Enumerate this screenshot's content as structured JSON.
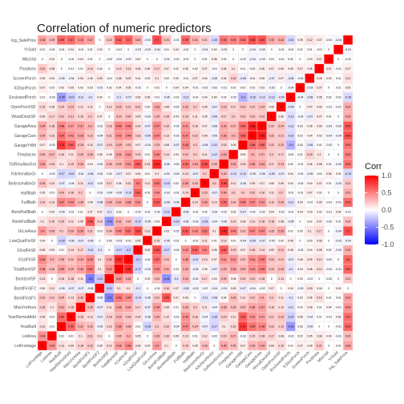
{
  "chart_data": {
    "type": "heatmap",
    "title": "Correlation of numeric predictors",
    "variables": [
      "log_SalePrice",
      "YrSold",
      "MiscVal",
      "PoolArea",
      "ScreenPorch",
      "X3SsnPorch",
      "EnclosedPorch",
      "OpenPorchSF",
      "WoodDeckSF",
      "GarageArea",
      "GarageCars",
      "GarageYrBlt",
      "Fireplaces",
      "TotRmsAbvGrd",
      "KitchenAbvGr",
      "BedroomAbvGr",
      "HalfBath",
      "FullBath",
      "BsmtHalfBath",
      "BsmtFullBath",
      "GrLivArea",
      "LowQualFinSF",
      "X2ndFlrSF",
      "X1stFlrSF",
      "TotalBsmtSF",
      "BsmtUnfSF",
      "BsmtFinSF2",
      "BsmtFinSF1",
      "MasVnrArea",
      "YearRemodAdd",
      "YearBuilt",
      "LotArea",
      "LotFrontage"
    ],
    "x_labels": [
      "LotFrontage",
      "LotArea",
      "YearBuilt",
      "YearRemodAdd",
      "MasVnrArea",
      "BsmtFinSF1",
      "BsmtFinSF2",
      "BsmtUnfSF",
      "TotalBsmtSF",
      "X1stFlrSF",
      "X2ndFlrSF",
      "LowQualFinSF",
      "GrLivArea",
      "BsmtFullBath",
      "BsmtHalfBath",
      "FullBath",
      "HalfBath",
      "BedroomAbvGr",
      "KitchenAbvGr",
      "TotRmsAbvGrd",
      "Fireplaces",
      "GarageYrBlt",
      "GarageCars",
      "GarageArea",
      "WoodDeckSF",
      "OpenPorchSF",
      "EnclosedPorch",
      "X3SsnPorch",
      "ScreenPorch",
      "PoolArea",
      "MiscVal",
      "YrSold",
      "log_SalePrice"
    ],
    "values_by_row": [
      [
        0.36,
        0.26,
        0.59,
        0.57,
        0.43,
        0.37,
        0.0,
        0.22,
        0.61,
        0.6,
        0.32,
        -0.04,
        0.7,
        0.24,
        -0.01,
        0.59,
        0.31,
        0.21,
        -0.15,
        0.53,
        0.49,
        0.54,
        0.68,
        0.65,
        0.33,
        0.32,
        -0.15,
        0.05,
        0.12,
        0.07,
        -0.02,
        -0.04,
        1
      ],
      [
        0.01,
        -0.01,
        -0.01,
        0.04,
        -0.01,
        0.01,
        0.03,
        0.0,
        -0.01,
        0.0,
        -0.03,
        -0.03,
        -0.04,
        0.01,
        0.04,
        -0.01,
        0.0,
        -0.04,
        0.02,
        -0.03,
        0.0,
        0.0,
        -0.04,
        -0.03,
        0.0,
        -0.01,
        -0.01,
        0.01,
        0.01,
        -0.01,
        0.0,
        1,
        -0.04
      ],
      [
        0.0,
        0.04,
        0.0,
        -0.01,
        0.04,
        0.01,
        0.0,
        -0.02,
        -0.02,
        -0.02,
        0.02,
        0.0,
        0.0,
        -0.02,
        -0.01,
        -0.01,
        0.0,
        0.01,
        0.06,
        0.02,
        0.0,
        -0.02,
        -0.04,
        -0.03,
        0.01,
        -0.01,
        0.02,
        0.0,
        0.03,
        0.07,
        1,
        0.0,
        -0.02
      ],
      [
        0.21,
        0.08,
        0.0,
        0.01,
        0.01,
        0.14,
        0.04,
        0.0,
        0.13,
        0.13,
        0.08,
        0.06,
        0.17,
        0.07,
        0.02,
        0.05,
        0.02,
        0.07,
        -0.01,
        0.08,
        0.1,
        0.01,
        0.03,
        0.06,
        0.07,
        0.06,
        0.05,
        0.07,
        0.05,
        1,
        0.07,
        -0.01,
        0.07
      ],
      [
        0.05,
        0.05,
        -0.05,
        -0.04,
        0.06,
        0.06,
        0.09,
        -0.01,
        0.08,
        0.09,
        0.04,
        0.03,
        0.1,
        0.02,
        0.03,
        -0.01,
        0.07,
        0.04,
        -0.05,
        0.06,
        0.18,
        -0.08,
        0.04,
        0.05,
        -0.07,
        0.07,
        -0.08,
        -0.03,
        1,
        0.05,
        0.03,
        0.01,
        0.12
      ],
      [
        0.07,
        0.02,
        0.03,
        0.05,
        0.02,
        0.03,
        -0.03,
        0.02,
        0.04,
        0.06,
        -0.02,
        0.0,
        0.02,
        0.0,
        0.04,
        0.04,
        -0.01,
        -0.02,
        -0.02,
        -0.01,
        0.01,
        0.02,
        0.02,
        0.03,
        -0.03,
        0.0,
        -0.04,
        1,
        -0.03,
        0.07,
        0.0,
        0.01,
        0.05
      ],
      [
        0.01,
        -0.02,
        -0.39,
        -0.19,
        -0.11,
        -0.1,
        0.04,
        0.0,
        -0.1,
        -0.07,
        0.06,
        0.06,
        0.01,
        -0.05,
        -0.01,
        -0.12,
        -0.01,
        0.04,
        0.04,
        0.02,
        -0.02,
        -0.3,
        -0.15,
        -0.12,
        -0.13,
        -0.09,
        1,
        -0.04,
        -0.08,
        0.05,
        0.02,
        -0.01,
        -0.15
      ],
      [
        0.15,
        0.08,
        0.19,
        0.23,
        0.12,
        0.11,
        0.0,
        0.13,
        0.25,
        0.21,
        0.21,
        0.02,
        0.33,
        0.08,
        -0.02,
        0.26,
        0.2,
        0.09,
        -0.07,
        0.23,
        0.17,
        0.23,
        0.21,
        0.24,
        0.06,
        1,
        -0.09,
        0.0,
        0.07,
        0.06,
        -0.01,
        -0.01,
        0.32
      ],
      [
        0.09,
        0.17,
        0.22,
        0.21,
        0.16,
        0.2,
        0.07,
        0.0,
        0.23,
        0.24,
        0.09,
        -0.03,
        0.25,
        0.18,
        0.04,
        0.19,
        0.11,
        0.05,
        -0.09,
        0.17,
        0.2,
        0.22,
        0.23,
        0.22,
        1,
        0.06,
        -0.13,
        -0.03,
        -0.07,
        0.07,
        0.01,
        0.0,
        0.33
      ],
      [
        0.34,
        0.18,
        0.48,
        0.37,
        0.37,
        0.3,
        -0.02,
        0.18,
        0.49,
        0.49,
        0.14,
        -0.07,
        0.47,
        0.18,
        -0.02,
        0.41,
        0.16,
        0.07,
        -0.06,
        0.34,
        0.27,
        0.56,
        0.88,
        1,
        0.22,
        0.24,
        -0.12,
        0.03,
        0.05,
        0.06,
        -0.03,
        -0.03,
        0.65
      ],
      [
        0.29,
        0.15,
        0.54,
        0.42,
        0.36,
        0.22,
        -0.04,
        0.21,
        0.43,
        0.44,
        0.18,
        -0.09,
        0.47,
        0.13,
        -0.02,
        0.47,
        0.22,
        0.09,
        -0.05,
        0.36,
        0.3,
        0.58,
        1,
        0.88,
        0.23,
        0.21,
        -0.15,
        0.02,
        0.04,
        0.03,
        -0.04,
        -0.04,
        0.68
      ],
      [
        0.07,
        -0.02,
        0.78,
        0.62,
        0.25,
        0.12,
        -0.07,
        0.19,
        0.29,
        0.23,
        0.07,
        -0.04,
        0.23,
        0.08,
        -0.07,
        0.48,
        0.2,
        -0.06,
        -0.12,
        0.15,
        0.05,
        1,
        0.58,
        0.56,
        0.22,
        0.23,
        -0.3,
        0.02,
        -0.08,
        0.01,
        -0.02,
        0.0,
        0.54
      ],
      [
        0.25,
        0.27,
        0.15,
        0.11,
        0.25,
        0.26,
        0.05,
        0.05,
        0.34,
        0.41,
        0.19,
        0.01,
        0.46,
        0.14,
        0.03,
        0.24,
        0.2,
        0.11,
        -0.12,
        0.33,
        1,
        0.05,
        0.3,
        0.27,
        0.2,
        0.17,
        -0.02,
        0.01,
        0.18,
        0.1,
        0.0,
        0.0,
        0.49
      ],
      [
        0.35,
        0.19,
        0.1,
        0.19,
        0.28,
        0.04,
        -0.04,
        0.25,
        0.29,
        0.41,
        0.62,
        0.13,
        0.83,
        -0.05,
        -0.02,
        0.55,
        0.34,
        0.68,
        0.26,
        1,
        0.33,
        0.15,
        0.36,
        0.34,
        0.17,
        0.23,
        0.02,
        -0.01,
        0.06,
        0.08,
        0.02,
        -0.03,
        0.53
      ],
      [
        0.0,
        -0.02,
        -0.17,
        -0.15,
        -0.04,
        -0.08,
        -0.04,
        0.03,
        -0.07,
        0.07,
        0.06,
        0.01,
        0.1,
        -0.04,
        -0.04,
        0.13,
        -0.07,
        0.2,
        1,
        0.26,
        -0.12,
        -0.12,
        -0.05,
        -0.06,
        -0.09,
        -0.07,
        0.04,
        -0.02,
        -0.05,
        -0.01,
        0.06,
        0.02,
        -0.15
      ],
      [
        0.26,
        0.12,
        -0.07,
        -0.04,
        0.11,
        -0.11,
        -0.02,
        0.17,
        0.05,
        0.13,
        0.5,
        0.11,
        0.52,
        -0.15,
        0.02,
        0.36,
        0.23,
        1,
        0.2,
        0.68,
        0.11,
        -0.06,
        0.09,
        0.07,
        0.05,
        0.09,
        0.04,
        -0.02,
        0.04,
        0.07,
        0.01,
        -0.04,
        0.21
      ],
      [
        0.05,
        0.01,
        0.24,
        0.18,
        0.2,
        0.0,
        -0.03,
        -0.04,
        -0.05,
        -0.12,
        0.61,
        -0.01,
        0.43,
        -0.03,
        -0.01,
        0.14,
        1,
        0.23,
        -0.07,
        0.34,
        0.2,
        0.2,
        0.22,
        0.16,
        0.11,
        0.2,
        -0.01,
        -0.01,
        0.07,
        0.02,
        0.0,
        0.0,
        0.31
      ],
      [
        0.19,
        0.13,
        0.47,
        0.44,
        0.28,
        0.06,
        -0.08,
        0.29,
        0.32,
        0.38,
        0.42,
        0.0,
        0.63,
        -0.06,
        -0.05,
        1,
        0.14,
        0.36,
        0.13,
        0.55,
        0.24,
        0.48,
        0.47,
        0.41,
        0.19,
        0.26,
        -0.12,
        0.04,
        -0.01,
        0.05,
        -0.01,
        -0.01,
        0.59
      ],
      [
        0.0,
        0.05,
        -0.04,
        -0.01,
        0.01,
        0.07,
        0.07,
        -0.1,
        0.02,
        0.0,
        -0.02,
        -0.01,
        -0.02,
        -0.15,
        1,
        -0.05,
        -0.01,
        0.02,
        -0.04,
        -0.02,
        0.03,
        -0.07,
        -0.02,
        -0.02,
        0.04,
        -0.02,
        -0.01,
        0.04,
        0.03,
        0.02,
        -0.01,
        0.04,
        -0.01
      ],
      [
        0.1,
        0.16,
        0.19,
        0.12,
        0.09,
        0.65,
        0.16,
        -0.42,
        0.31,
        0.24,
        -0.17,
        -0.05,
        0.03,
        1,
        -0.15,
        -0.06,
        -0.03,
        -0.15,
        -0.04,
        -0.05,
        0.14,
        0.08,
        0.13,
        0.18,
        0.18,
        0.08,
        -0.05,
        0.0,
        0.02,
        0.07,
        -0.02,
        0.01,
        0.24
      ],
      [
        0.4,
        0.26,
        0.2,
        0.29,
        0.39,
        0.21,
        -0.01,
        0.24,
        0.45,
        0.57,
        0.69,
        0.13,
        1,
        0.03,
        -0.02,
        0.63,
        0.43,
        0.52,
        0.1,
        0.83,
        0.46,
        0.23,
        0.47,
        0.47,
        0.25,
        0.33,
        0.01,
        0.02,
        0.1,
        0.17,
        0.0,
        -0.04,
        0.7
      ],
      [
        0.04,
        0.0,
        -0.18,
        -0.06,
        -0.07,
        -0.06,
        0.0,
        0.03,
        -0.03,
        -0.01,
        0.06,
        1,
        0.13,
        -0.05,
        -0.01,
        0.0,
        -0.01,
        0.11,
        0.01,
        0.13,
        0.01,
        -0.04,
        -0.09,
        -0.07,
        -0.03,
        0.02,
        0.06,
        0.0,
        0.03,
        0.06,
        0.0,
        -0.03,
        -0.04
      ],
      [
        0.08,
        0.05,
        0.01,
        0.14,
        0.17,
        -0.14,
        -0.1,
        0.0,
        -0.17,
        -0.2,
        1,
        0.06,
        0.69,
        -0.17,
        -0.02,
        0.42,
        0.61,
        0.5,
        0.06,
        0.62,
        0.19,
        0.07,
        0.18,
        0.14,
        0.09,
        0.21,
        0.06,
        -0.02,
        0.04,
        0.08,
        0.02,
        -0.03,
        0.32
      ],
      [
        0.46,
        0.3,
        0.28,
        0.24,
        0.34,
        0.45,
        0.1,
        0.32,
        0.82,
        1,
        -0.2,
        -0.01,
        0.57,
        0.24,
        0.0,
        0.38,
        -0.12,
        0.13,
        0.07,
        0.41,
        0.41,
        0.23,
        0.44,
        0.49,
        0.24,
        0.21,
        -0.07,
        0.06,
        0.09,
        0.13,
        -0.02,
        0.0,
        0.6
      ],
      [
        0.38,
        0.26,
        0.39,
        0.29,
        0.36,
        0.52,
        0.1,
        0.42,
        1,
        0.82,
        -0.17,
        -0.03,
        0.45,
        0.31,
        0.02,
        0.32,
        -0.05,
        0.05,
        -0.07,
        0.29,
        0.34,
        0.29,
        0.43,
        0.49,
        0.23,
        0.25,
        -0.1,
        0.04,
        0.08,
        0.13,
        -0.02,
        -0.01,
        0.61
      ],
      [
        0.13,
        0.0,
        0.15,
        0.18,
        0.11,
        -0.5,
        -0.21,
        1,
        0.42,
        0.32,
        0.0,
        0.03,
        0.24,
        -0.42,
        -0.1,
        0.29,
        -0.04,
        0.17,
        0.03,
        0.25,
        0.05,
        0.19,
        0.21,
        0.18,
        0.0,
        0.13,
        0.0,
        0.02,
        -0.01,
        0.0,
        -0.02,
        0.0,
        0.22
      ],
      [
        0.05,
        0.11,
        -0.05,
        -0.07,
        -0.07,
        -0.05,
        1,
        -0.21,
        0.1,
        0.1,
        -0.1,
        0.0,
        -0.01,
        0.16,
        0.07,
        -0.08,
        -0.03,
        -0.02,
        -0.04,
        -0.04,
        0.05,
        -0.07,
        -0.04,
        -0.02,
        0.07,
        0.0,
        0.04,
        -0.03,
        0.09,
        0.04,
        0.0,
        0.03,
        0.0
      ],
      [
        0.22,
        0.21,
        0.25,
        0.13,
        0.26,
        1,
        -0.05,
        -0.5,
        0.52,
        0.45,
        -0.14,
        -0.06,
        0.21,
        0.65,
        0.07,
        0.06,
        0.0,
        -0.11,
        -0.08,
        0.04,
        0.26,
        0.12,
        0.22,
        0.3,
        0.2,
        0.11,
        -0.1,
        0.03,
        0.06,
        0.14,
        0.01,
        0.01,
        0.37
      ],
      [
        0.18,
        0.1,
        0.31,
        0.18,
        1,
        0.26,
        -0.07,
        0.11,
        0.36,
        0.34,
        0.17,
        -0.07,
        0.39,
        0.09,
        0.01,
        0.28,
        0.2,
        0.11,
        -0.04,
        0.28,
        0.25,
        0.25,
        0.36,
        0.37,
        0.16,
        0.12,
        -0.11,
        0.02,
        0.06,
        0.01,
        0.04,
        -0.01,
        0.43
      ],
      [
        0.09,
        0.01,
        0.59,
        1,
        0.18,
        0.13,
        -0.07,
        0.18,
        0.29,
        0.24,
        0.14,
        -0.06,
        0.29,
        0.12,
        -0.01,
        0.44,
        0.18,
        -0.04,
        -0.15,
        0.19,
        0.11,
        0.62,
        0.42,
        0.37,
        0.21,
        0.23,
        -0.19,
        0.05,
        -0.04,
        0.01,
        -0.01,
        0.04,
        0.57
      ],
      [
        0.12,
        0.01,
        1,
        0.59,
        0.31,
        0.25,
        -0.05,
        0.15,
        0.39,
        0.28,
        0.01,
        -0.18,
        0.2,
        0.19,
        -0.04,
        0.47,
        0.24,
        -0.07,
        -0.17,
        0.1,
        0.15,
        0.78,
        0.54,
        0.48,
        0.22,
        0.19,
        -0.39,
        0.03,
        -0.05,
        0.0,
        0.0,
        -0.01,
        0.59
      ],
      [
        0.43,
        1,
        0.01,
        0.01,
        0.1,
        0.21,
        0.11,
        0.0,
        0.26,
        0.3,
        0.05,
        0.0,
        0.26,
        0.16,
        0.05,
        0.13,
        0.01,
        0.12,
        -0.02,
        0.19,
        0.27,
        -0.02,
        0.15,
        0.18,
        0.17,
        0.08,
        -0.02,
        0.02,
        0.05,
        0.08,
        0.04,
        -0.01,
        0.26
      ],
      [
        1,
        0.43,
        0.12,
        0.09,
        0.18,
        0.22,
        0.05,
        0.13,
        0.38,
        0.46,
        0.08,
        0.04,
        0.4,
        0.1,
        0.0,
        0.19,
        0.05,
        0.26,
        0.0,
        0.35,
        0.25,
        0.07,
        0.29,
        0.34,
        0.09,
        0.15,
        0.01,
        0.07,
        0.05,
        0.21,
        0.0,
        0.01,
        0.36
      ]
    ],
    "legend": {
      "title": "Corr",
      "ticks": [
        "1.0",
        "0.5",
        "0.0",
        "-0.5",
        "-1.0"
      ],
      "tick_values": [
        1.0,
        0.5,
        0.0,
        -0.5,
        -1.0
      ],
      "range": [
        -1,
        1
      ]
    },
    "colors": {
      "low": "#0000ff",
      "mid": "#ffffff",
      "high": "#ff0000",
      "grid": "#e6e6e6"
    }
  }
}
